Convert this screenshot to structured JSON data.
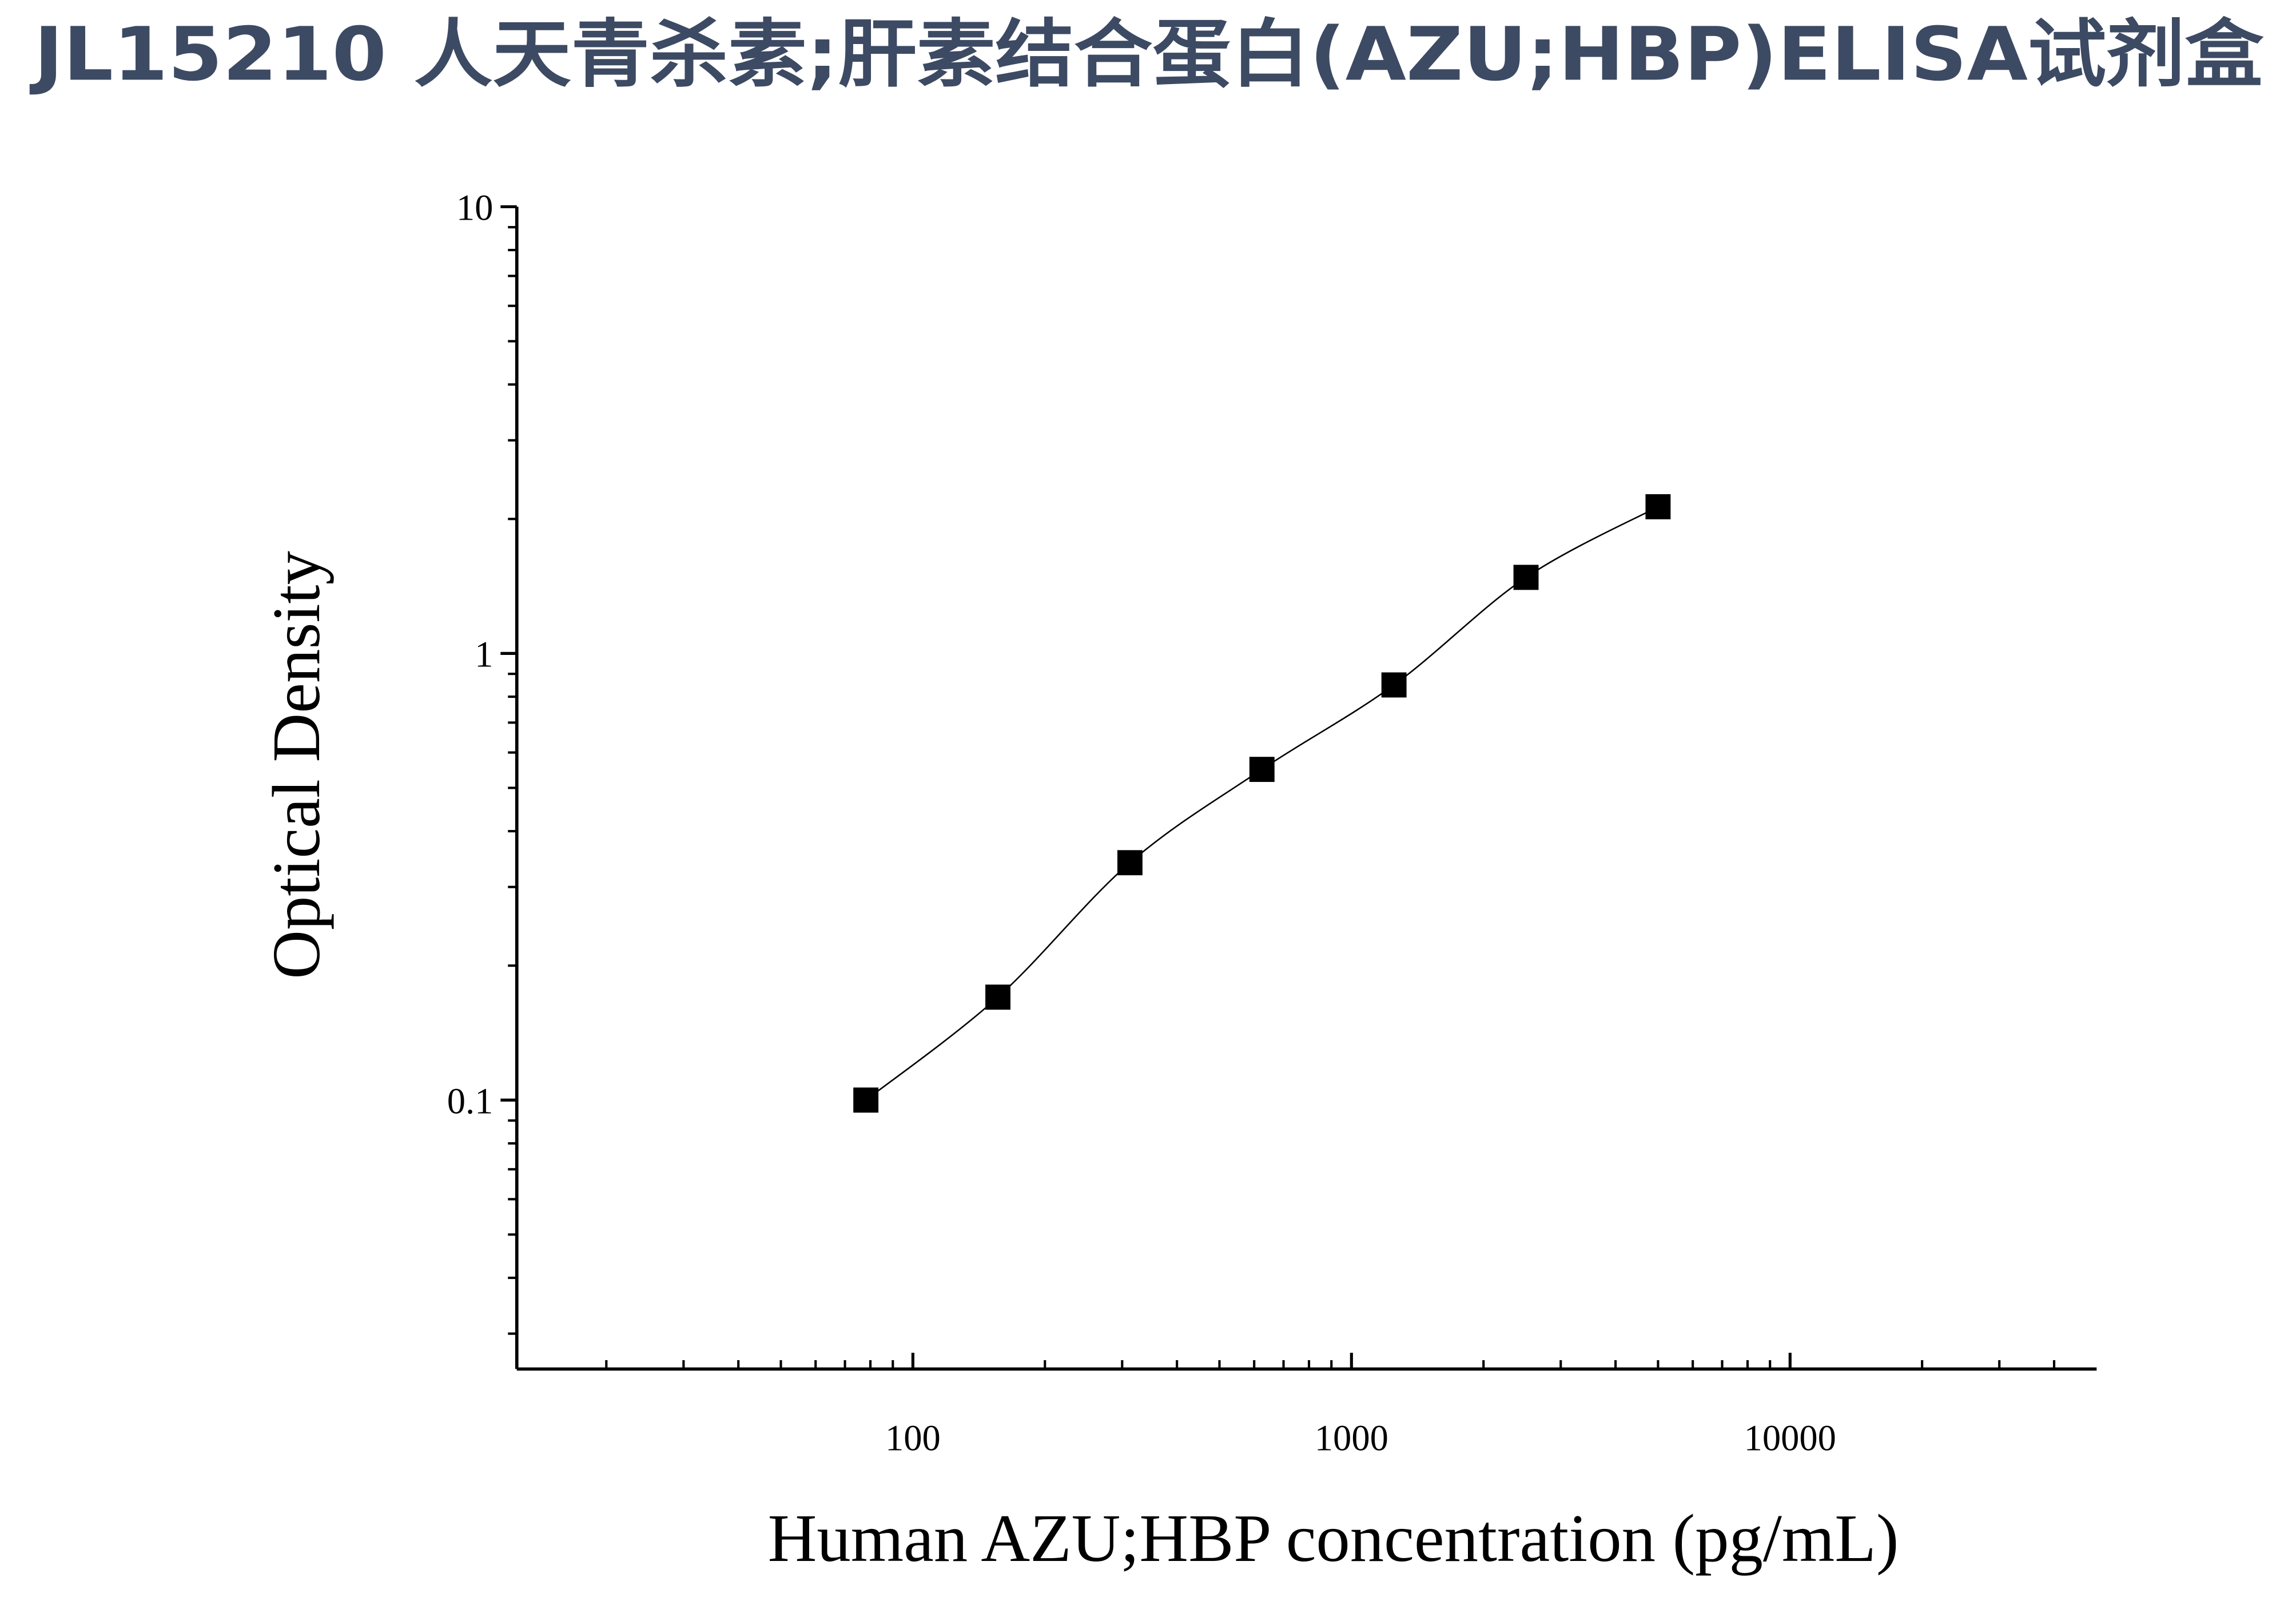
{
  "chart_data": {
    "type": "scatter",
    "title": "JL15210 人天青杀素;肝素结合蛋白(AZU;HBP)ELISA试剂盒",
    "x_label": "Human AZU;HBP concentration (pg/mL)",
    "y_label": "Optical Density",
    "x": [
      78.125,
      156.25,
      312.5,
      625,
      1250,
      2500,
      5000
    ],
    "series": [
      {
        "color": "#000000",
        "values": [
          0.1,
          0.17,
          0.34,
          0.55,
          0.85,
          1.48,
          2.13
        ]
      }
    ],
    "xlim": [
      12.5,
      50000
    ],
    "xticks": [
      100,
      1000,
      10000
    ],
    "ylim": [
      0.025,
      10
    ],
    "yticks": [
      0.1,
      1,
      10
    ],
    "xscale": "log",
    "yscale": "log",
    "fit_line": true,
    "minor_ticks": true,
    "title_color": "#3d4a63"
  }
}
